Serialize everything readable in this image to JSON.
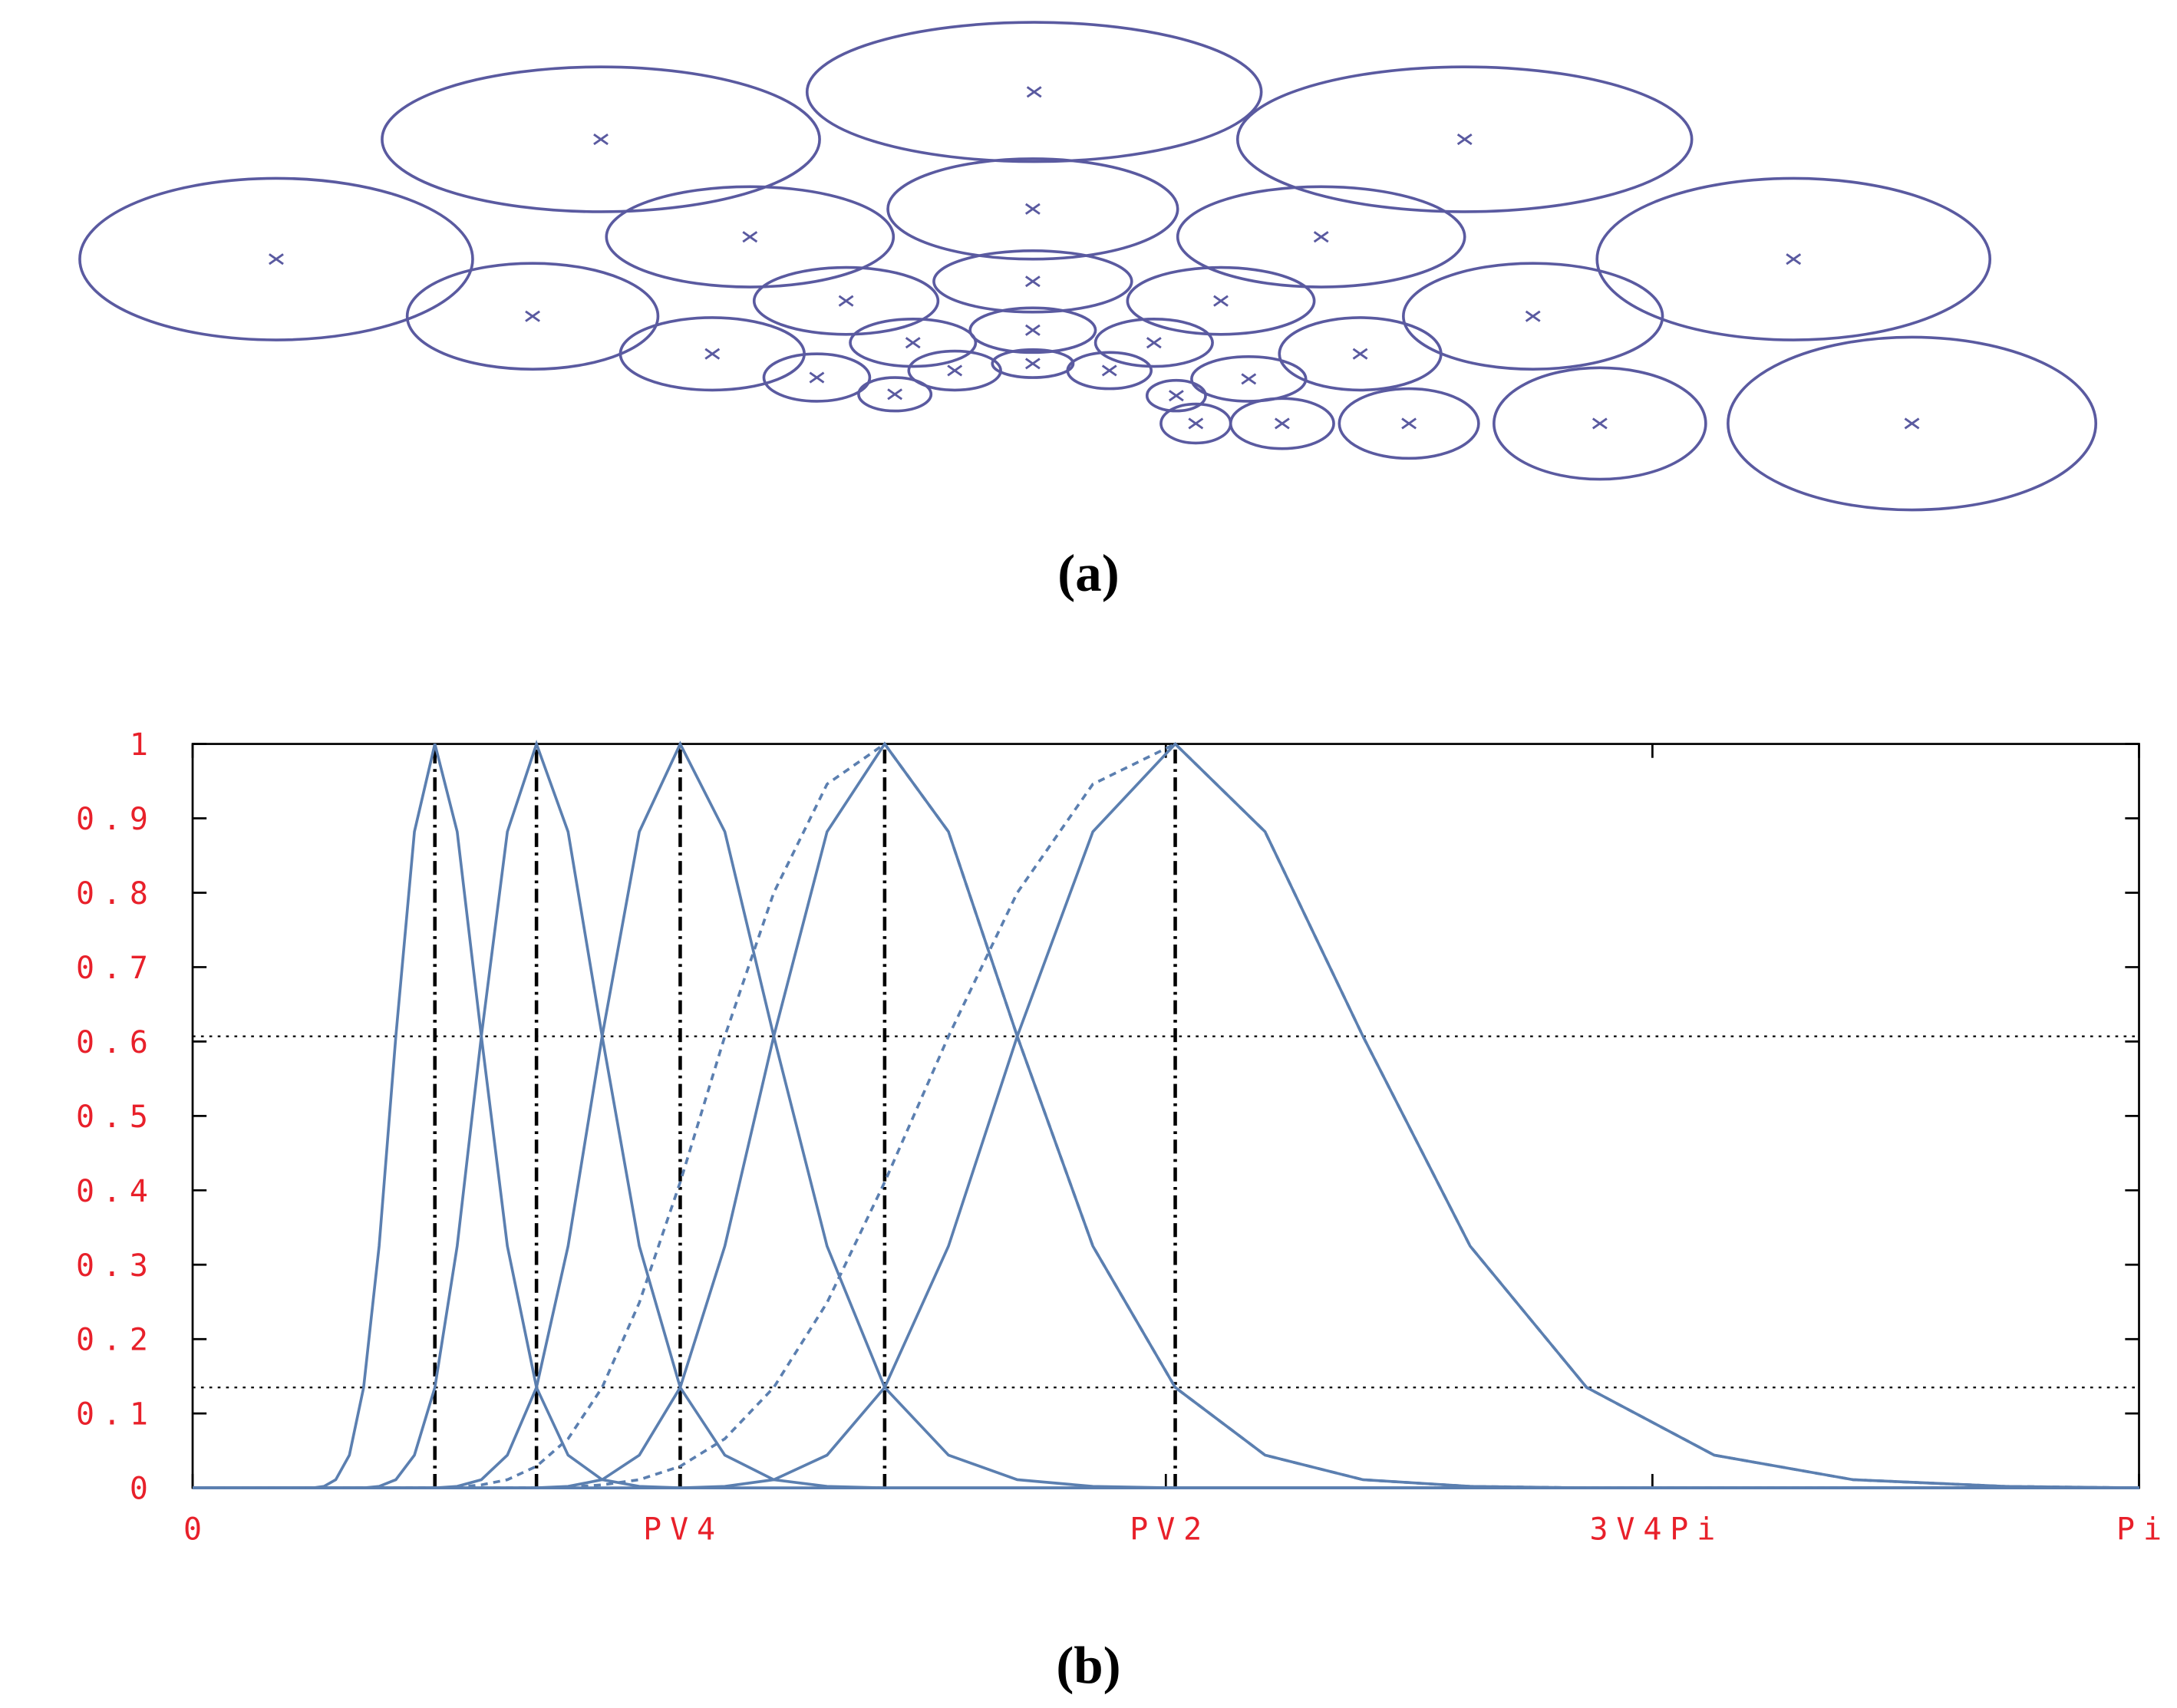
{
  "diagram": {
    "label": "(a)"
  },
  "chart_data": {
    "type": "line",
    "label": "(b)",
    "xlim": [
      0,
      3.1416
    ],
    "ylim": [
      0,
      1
    ],
    "xticks": [
      0,
      {
        "value": 0.7854,
        "label": "PV4"
      },
      {
        "value": 1.5708,
        "label": "PV2"
      },
      {
        "value": 2.3562,
        "label": "3V4Pi"
      },
      {
        "value": 3.1416,
        "label": "Pi"
      }
    ],
    "yticks": [
      0,
      0.1,
      0.2,
      0.3,
      0.4,
      0.5,
      0.6,
      0.7,
      0.8,
      0.9,
      1
    ],
    "hlines": [
      0.607,
      0.135
    ],
    "vlines": [
      0.391,
      0.555,
      0.787,
      1.117,
      1.586
    ],
    "x": [
      0,
      0.149,
      0.163,
      0.178,
      0.194,
      0.212,
      0.231,
      0.253,
      0.276,
      0.301,
      0.328,
      0.358,
      0.391,
      0.427,
      0.466,
      0.508,
      0.555,
      0.606,
      0.661,
      0.721,
      0.787,
      0.859,
      0.938,
      1.024,
      1.117,
      1.22,
      1.331,
      1.453,
      1.586,
      1.731,
      1.889,
      2.062,
      2.25,
      2.456,
      2.68,
      2.926,
      3.142
    ],
    "series": [
      {
        "color": "#5b7fb0",
        "style": "solid",
        "values": [
          0,
          0,
          0,
          0,
          0,
          0.002,
          0.011,
          0.044,
          0.135,
          0.325,
          0.607,
          0.882,
          1,
          0.882,
          0.607,
          0.325,
          0.135,
          0.044,
          0.011,
          0.002,
          0,
          0,
          0,
          0,
          0,
          0,
          0,
          0,
          0,
          0,
          0,
          0,
          0,
          0,
          0,
          0,
          0
        ]
      },
      {
        "color": "#5b7fb0",
        "style": "solid",
        "values": [
          0,
          0,
          0,
          0,
          0,
          0,
          0,
          0,
          0,
          0.002,
          0.011,
          0.044,
          0.135,
          0.325,
          0.607,
          0.882,
          1,
          0.882,
          0.607,
          0.325,
          0.135,
          0.044,
          0.011,
          0.002,
          0,
          0,
          0,
          0,
          0,
          0,
          0,
          0,
          0,
          0,
          0,
          0,
          0
        ]
      },
      {
        "color": "#5b7fb0",
        "style": "solid",
        "values": [
          0,
          0,
          0,
          0,
          0,
          0,
          0,
          0,
          0,
          0,
          0,
          0,
          0,
          0.002,
          0.011,
          0.044,
          0.135,
          0.325,
          0.607,
          0.882,
          1,
          0.882,
          0.607,
          0.325,
          0.135,
          0.044,
          0.011,
          0.002,
          0,
          0,
          0,
          0,
          0,
          0,
          0,
          0,
          0
        ]
      },
      {
        "color": "#5b7fb0",
        "style": "solid",
        "values": [
          0,
          0,
          0,
          0,
          0,
          0,
          0,
          0,
          0,
          0,
          0,
          0,
          0,
          0,
          0,
          0,
          0,
          0.002,
          0.011,
          0.044,
          0.135,
          0.325,
          0.607,
          0.882,
          1,
          0.882,
          0.607,
          0.325,
          0.135,
          0.044,
          0.011,
          0.002,
          0,
          0,
          0,
          0,
          0
        ]
      },
      {
        "color": "#5b7fb0",
        "style": "solid",
        "values": [
          0,
          0,
          0,
          0,
          0,
          0,
          0,
          0,
          0,
          0,
          0,
          0,
          0,
          0,
          0,
          0,
          0,
          0,
          0,
          0,
          0,
          0.002,
          0.011,
          0.044,
          0.135,
          0.325,
          0.607,
          0.882,
          1,
          0.882,
          0.607,
          0.325,
          0.135,
          0.044,
          0.011,
          0.002,
          0
        ]
      },
      {
        "color": "#5b7fb0",
        "style": "dashed",
        "values": [
          0,
          0,
          0,
          0,
          0,
          0,
          0,
          0,
          0,
          0,
          0,
          0,
          0,
          0.001,
          0.004,
          0.011,
          0.029,
          0.066,
          0.135,
          0.249,
          0.411,
          0.607,
          0.8,
          0.946,
          1,
          0.882,
          0.607,
          0.325,
          0.135,
          0.044,
          0.011,
          0.002,
          0,
          0,
          0,
          0,
          0
        ]
      },
      {
        "color": "#5b7fb0",
        "style": "dashed",
        "values": [
          0,
          0,
          0,
          0,
          0,
          0,
          0,
          0,
          0,
          0,
          0,
          0,
          0,
          0,
          0,
          0,
          0,
          0.001,
          0.004,
          0.011,
          0.029,
          0.066,
          0.135,
          0.249,
          0.411,
          0.607,
          0.8,
          0.946,
          1,
          0.882,
          0.607,
          0.325,
          0.135,
          0.044,
          0.011,
          0.002,
          0
        ]
      }
    ]
  }
}
